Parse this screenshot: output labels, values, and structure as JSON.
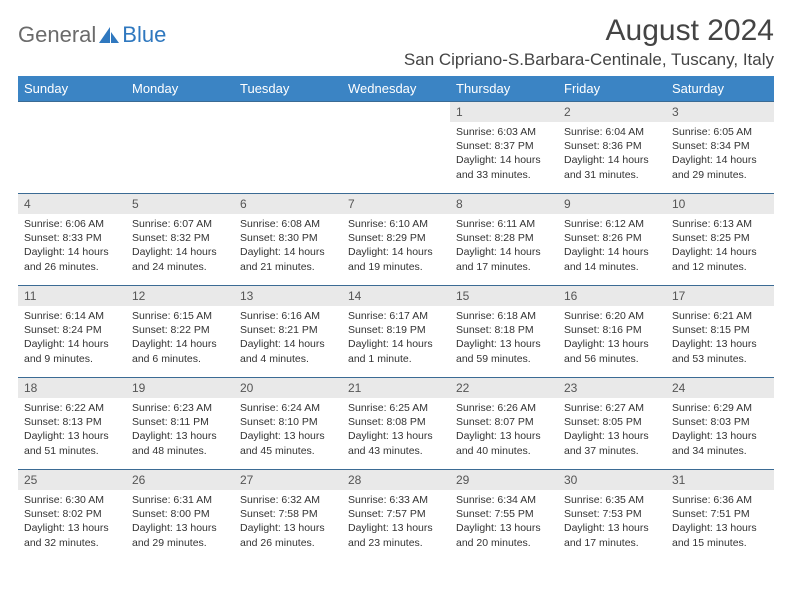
{
  "brand": {
    "part1": "General",
    "part2": "Blue"
  },
  "title": "August 2024",
  "location": "San Cipriano-S.Barbara-Centinale, Tuscany, Italy",
  "colors": {
    "header_bg": "#3b84c4",
    "header_text": "#ffffff",
    "daynum_bg": "#e9e9e9",
    "border": "#3b6b94",
    "brand_gray": "#6b6b6b",
    "brand_blue": "#2f78bf"
  },
  "weekdays": [
    "Sunday",
    "Monday",
    "Tuesday",
    "Wednesday",
    "Thursday",
    "Friday",
    "Saturday"
  ],
  "weeks": [
    [
      null,
      null,
      null,
      null,
      {
        "d": "1",
        "sr": "6:03 AM",
        "ss": "8:37 PM",
        "dl": "14 hours and 33 minutes."
      },
      {
        "d": "2",
        "sr": "6:04 AM",
        "ss": "8:36 PM",
        "dl": "14 hours and 31 minutes."
      },
      {
        "d": "3",
        "sr": "6:05 AM",
        "ss": "8:34 PM",
        "dl": "14 hours and 29 minutes."
      }
    ],
    [
      {
        "d": "4",
        "sr": "6:06 AM",
        "ss": "8:33 PM",
        "dl": "14 hours and 26 minutes."
      },
      {
        "d": "5",
        "sr": "6:07 AM",
        "ss": "8:32 PM",
        "dl": "14 hours and 24 minutes."
      },
      {
        "d": "6",
        "sr": "6:08 AM",
        "ss": "8:30 PM",
        "dl": "14 hours and 21 minutes."
      },
      {
        "d": "7",
        "sr": "6:10 AM",
        "ss": "8:29 PM",
        "dl": "14 hours and 19 minutes."
      },
      {
        "d": "8",
        "sr": "6:11 AM",
        "ss": "8:28 PM",
        "dl": "14 hours and 17 minutes."
      },
      {
        "d": "9",
        "sr": "6:12 AM",
        "ss": "8:26 PM",
        "dl": "14 hours and 14 minutes."
      },
      {
        "d": "10",
        "sr": "6:13 AM",
        "ss": "8:25 PM",
        "dl": "14 hours and 12 minutes."
      }
    ],
    [
      {
        "d": "11",
        "sr": "6:14 AM",
        "ss": "8:24 PM",
        "dl": "14 hours and 9 minutes."
      },
      {
        "d": "12",
        "sr": "6:15 AM",
        "ss": "8:22 PM",
        "dl": "14 hours and 6 minutes."
      },
      {
        "d": "13",
        "sr": "6:16 AM",
        "ss": "8:21 PM",
        "dl": "14 hours and 4 minutes."
      },
      {
        "d": "14",
        "sr": "6:17 AM",
        "ss": "8:19 PM",
        "dl": "14 hours and 1 minute."
      },
      {
        "d": "15",
        "sr": "6:18 AM",
        "ss": "8:18 PM",
        "dl": "13 hours and 59 minutes."
      },
      {
        "d": "16",
        "sr": "6:20 AM",
        "ss": "8:16 PM",
        "dl": "13 hours and 56 minutes."
      },
      {
        "d": "17",
        "sr": "6:21 AM",
        "ss": "8:15 PM",
        "dl": "13 hours and 53 minutes."
      }
    ],
    [
      {
        "d": "18",
        "sr": "6:22 AM",
        "ss": "8:13 PM",
        "dl": "13 hours and 51 minutes."
      },
      {
        "d": "19",
        "sr": "6:23 AM",
        "ss": "8:11 PM",
        "dl": "13 hours and 48 minutes."
      },
      {
        "d": "20",
        "sr": "6:24 AM",
        "ss": "8:10 PM",
        "dl": "13 hours and 45 minutes."
      },
      {
        "d": "21",
        "sr": "6:25 AM",
        "ss": "8:08 PM",
        "dl": "13 hours and 43 minutes."
      },
      {
        "d": "22",
        "sr": "6:26 AM",
        "ss": "8:07 PM",
        "dl": "13 hours and 40 minutes."
      },
      {
        "d": "23",
        "sr": "6:27 AM",
        "ss": "8:05 PM",
        "dl": "13 hours and 37 minutes."
      },
      {
        "d": "24",
        "sr": "6:29 AM",
        "ss": "8:03 PM",
        "dl": "13 hours and 34 minutes."
      }
    ],
    [
      {
        "d": "25",
        "sr": "6:30 AM",
        "ss": "8:02 PM",
        "dl": "13 hours and 32 minutes."
      },
      {
        "d": "26",
        "sr": "6:31 AM",
        "ss": "8:00 PM",
        "dl": "13 hours and 29 minutes."
      },
      {
        "d": "27",
        "sr": "6:32 AM",
        "ss": "7:58 PM",
        "dl": "13 hours and 26 minutes."
      },
      {
        "d": "28",
        "sr": "6:33 AM",
        "ss": "7:57 PM",
        "dl": "13 hours and 23 minutes."
      },
      {
        "d": "29",
        "sr": "6:34 AM",
        "ss": "7:55 PM",
        "dl": "13 hours and 20 minutes."
      },
      {
        "d": "30",
        "sr": "6:35 AM",
        "ss": "7:53 PM",
        "dl": "13 hours and 17 minutes."
      },
      {
        "d": "31",
        "sr": "6:36 AM",
        "ss": "7:51 PM",
        "dl": "13 hours and 15 minutes."
      }
    ]
  ]
}
